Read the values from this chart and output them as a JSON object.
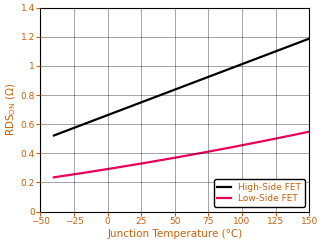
{
  "xlabel": "Junction Temperature (°C)",
  "ylabel": "RDS$_\\mathregular{ON}$ (Ω)",
  "xlim": [
    -50,
    150
  ],
  "ylim": [
    0,
    1.4
  ],
  "xticks": [
    -50,
    -25,
    0,
    25,
    50,
    75,
    100,
    125,
    150
  ],
  "yticks": [
    0,
    0.2,
    0.4,
    0.6,
    0.8,
    1.0,
    1.2,
    1.4
  ],
  "high_side": {
    "x": [
      -40,
      -25,
      0,
      25,
      50,
      75,
      100,
      125,
      150
    ],
    "y": [
      0.54,
      0.59,
      0.67,
      0.735,
      0.805,
      0.9,
      1.0,
      1.11,
      1.22
    ],
    "color": "#000000",
    "label": "High-Side FET",
    "linewidth": 1.6
  },
  "low_side": {
    "x": [
      -40,
      -25,
      0,
      25,
      50,
      75,
      100,
      125,
      150
    ],
    "y": [
      0.235,
      0.258,
      0.288,
      0.322,
      0.382,
      0.408,
      0.452,
      0.502,
      0.548
    ],
    "color": "#e8005a",
    "label": "Low-Side FET",
    "linewidth": 1.6
  },
  "xlabel_color": "#c8600a",
  "ylabel_color": "#c8600a",
  "tick_color": "#c8600a",
  "grid_color": "#000000",
  "grid_alpha": 0.5,
  "grid_linewidth": 0.5,
  "spine_color": "#000000",
  "spine_linewidth": 0.8,
  "legend_fontsize": 6.5,
  "axis_label_fontsize": 7.5,
  "tick_fontsize": 6.5
}
